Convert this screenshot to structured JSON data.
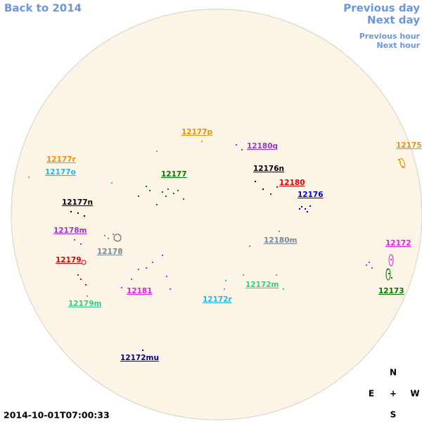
{
  "navigation": {
    "back": "Back to 2014",
    "previous_day": "Previous day",
    "next_day": "Next day",
    "previous_hour": "Previous hour",
    "next_hour": "Next hour"
  },
  "timestamp": "2014-10-01T07:00:33",
  "compass": {
    "north": "N",
    "east": "E",
    "center": "+",
    "west": "W",
    "south": "S"
  },
  "regions": [
    {
      "label": "12177p",
      "color": "#e8900a"
    },
    {
      "label": "12180q",
      "color": "#9933cc"
    },
    {
      "label": "12175",
      "color": "#e8900a"
    },
    {
      "label": "12177r",
      "color": "#e8900a"
    },
    {
      "label": "12177o",
      "color": "#22b5e8"
    },
    {
      "label": "12177",
      "color": "#007700"
    },
    {
      "label": "12176n",
      "color": "#000000"
    },
    {
      "label": "12180",
      "color": "#e00000"
    },
    {
      "label": "12176",
      "color": "#0000cc"
    },
    {
      "label": "12177n",
      "color": "#000000"
    },
    {
      "label": "12178m",
      "color": "#9933cc"
    },
    {
      "label": "12178",
      "color": "#778899"
    },
    {
      "label": "12180m",
      "color": "#778899"
    },
    {
      "label": "12172",
      "color": "#dd22dd"
    },
    {
      "label": "12179",
      "color": "#e00000"
    },
    {
      "label": "12172m",
      "color": "#33cc88"
    },
    {
      "label": "12181",
      "color": "#dd22dd"
    },
    {
      "label": "12173",
      "color": "#007700"
    },
    {
      "label": "12172r",
      "color": "#22b5e8"
    },
    {
      "label": "12179m",
      "color": "#33cc88"
    },
    {
      "label": "12172mu",
      "color": "#00008b"
    }
  ]
}
